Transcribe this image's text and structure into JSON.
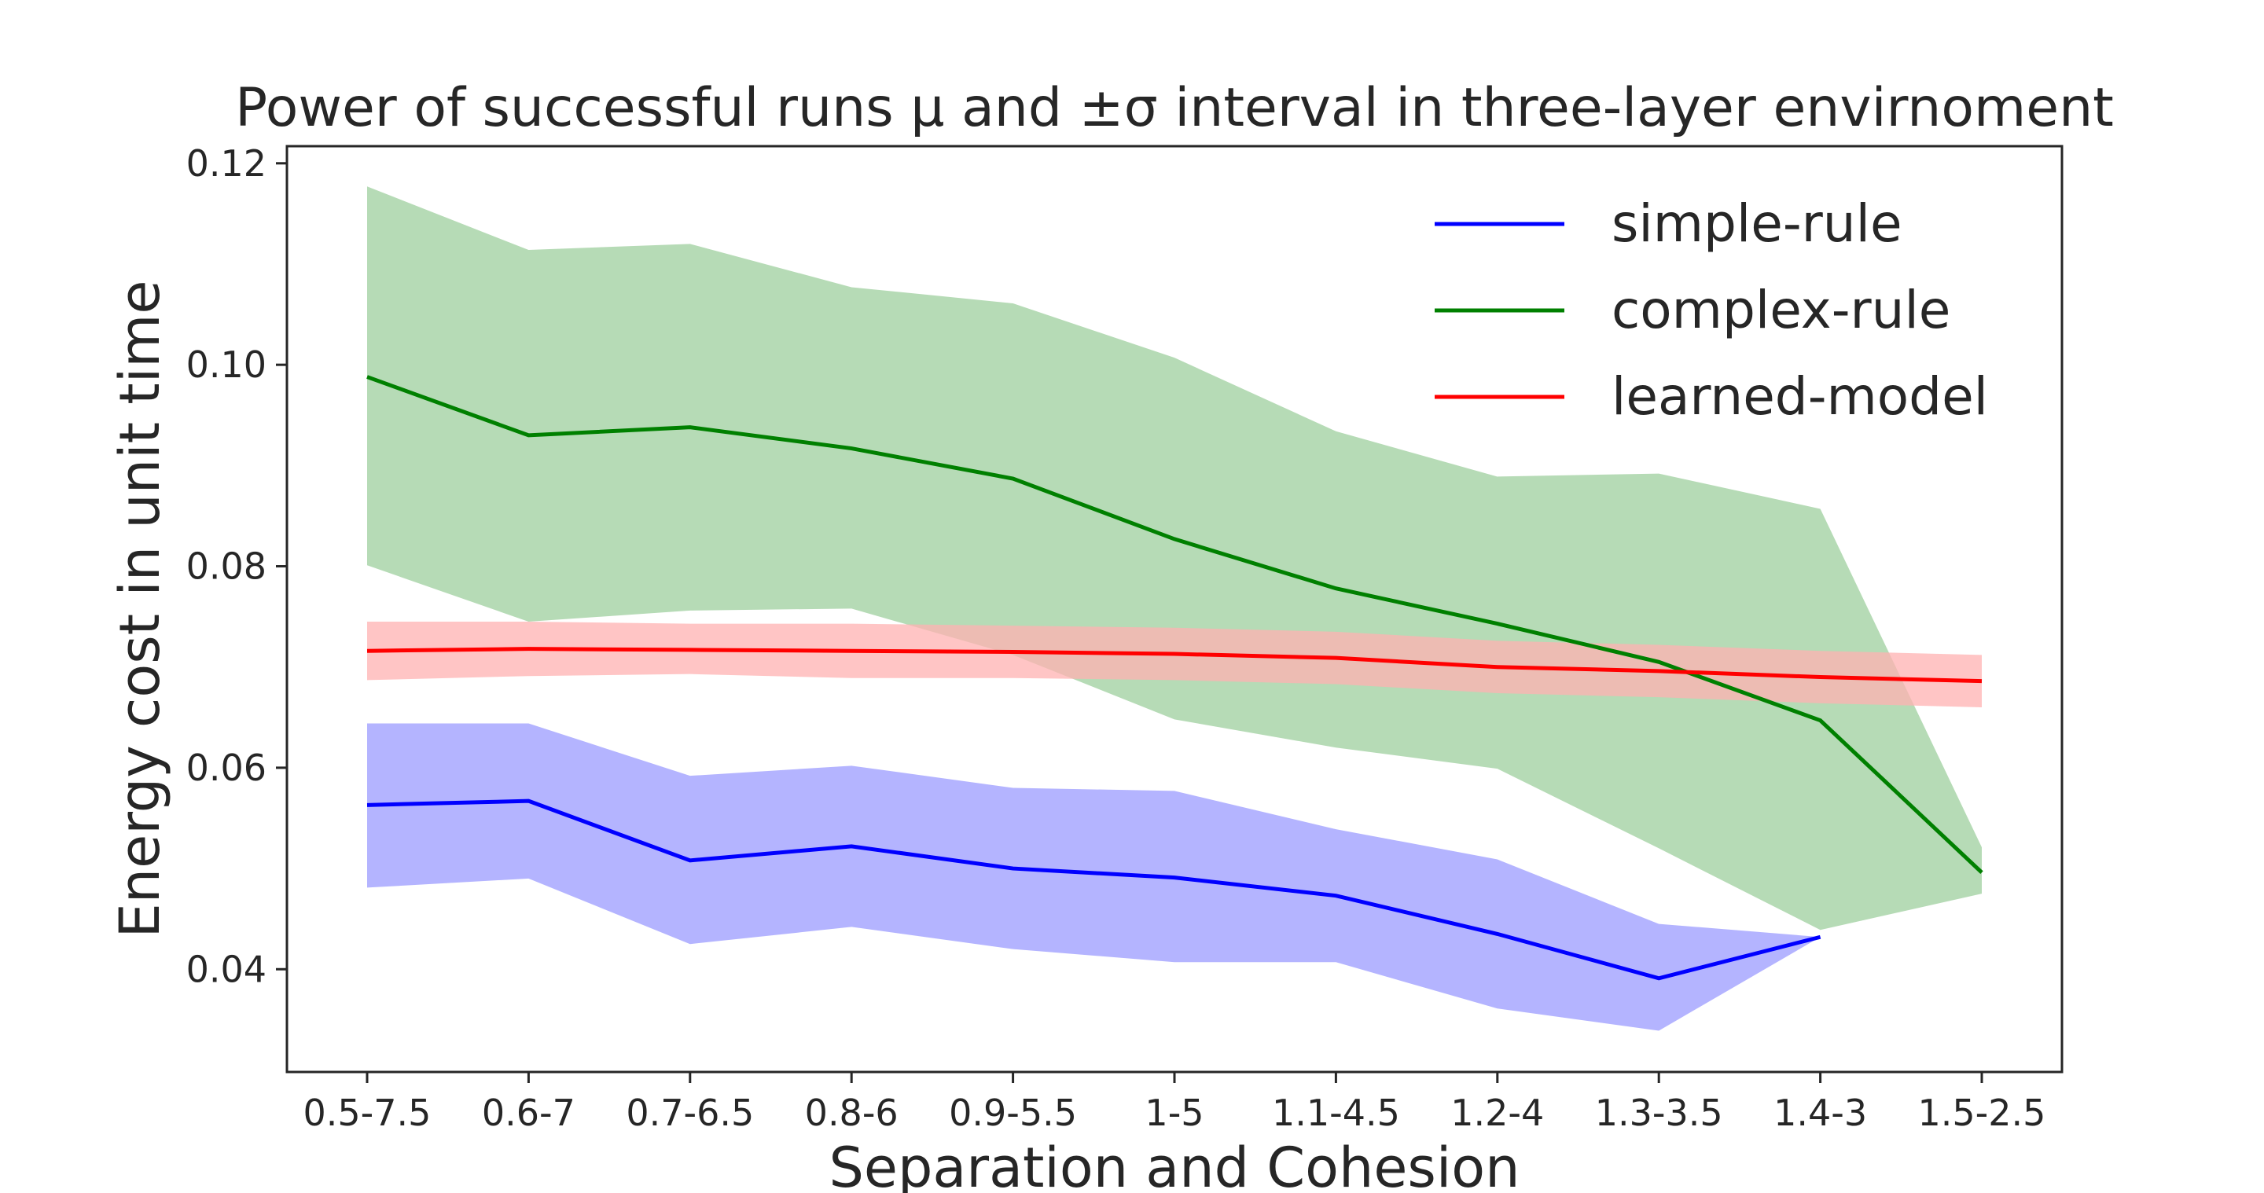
{
  "chart_data": {
    "type": "line",
    "title": "Power of successful runs μ and ±σ interval in three-layer envirnoment",
    "xlabel": "Separation and Cohesion",
    "ylabel": "Energy cost in unit time",
    "categories": [
      "0.5-7.5",
      "0.6-7",
      "0.7-6.5",
      "0.8-6",
      "0.9-5.5",
      "1-5",
      "1.1-4.5",
      "1.2-4",
      "1.3-3.5",
      "1.4-3",
      "1.5-2.5"
    ],
    "ylim": [
      0.0298,
      0.1217
    ],
    "yticks": [
      0.04,
      0.06,
      0.08,
      0.1,
      0.12
    ],
    "ytick_labels": [
      "0.04",
      "0.06",
      "0.08",
      "0.10",
      "0.12"
    ],
    "grid": false,
    "legend_position": "top-right",
    "series": [
      {
        "name": "simple-rule",
        "color": "#0000ff",
        "band_color": "#b0b0ff",
        "mean": [
          0.0563,
          0.0567,
          0.0508,
          0.0522,
          0.05,
          0.0491,
          0.0473,
          0.0435,
          0.0391,
          0.0432,
          null
        ],
        "upper": [
          0.0644,
          0.0644,
          0.0592,
          0.0602,
          0.058,
          0.0577,
          0.0539,
          0.0509,
          0.0445,
          0.0432,
          null
        ],
        "lower": [
          0.0481,
          0.049,
          0.0425,
          0.0442,
          0.042,
          0.0407,
          0.0407,
          0.0361,
          0.0339,
          0.0432,
          null
        ]
      },
      {
        "name": "complex-rule",
        "color": "#008000",
        "band_color": "#b2d9b2",
        "mean": [
          0.0988,
          0.093,
          0.0938,
          0.0917,
          0.0887,
          0.0827,
          0.0778,
          0.0743,
          0.0705,
          0.0647,
          0.0496
        ],
        "upper": [
          0.1177,
          0.1114,
          0.112,
          0.1077,
          0.1061,
          0.1007,
          0.0934,
          0.0889,
          0.0892,
          0.0857,
          0.0521
        ],
        "lower": [
          0.0801,
          0.0745,
          0.0756,
          0.0758,
          0.0712,
          0.0648,
          0.062,
          0.0599,
          0.052,
          0.0439,
          0.0475
        ]
      },
      {
        "name": "learned-model",
        "color": "#ff0000",
        "band_color": "#ffb2b2",
        "mean": [
          0.0716,
          0.0718,
          0.0717,
          0.0716,
          0.0715,
          0.0713,
          0.0709,
          0.07,
          0.0696,
          0.069,
          0.0686
        ],
        "upper": [
          0.0745,
          0.0745,
          0.0743,
          0.0743,
          0.0741,
          0.0739,
          0.0735,
          0.0726,
          0.0722,
          0.0716,
          0.0712
        ],
        "lower": [
          0.0687,
          0.0691,
          0.0693,
          0.0689,
          0.0689,
          0.0687,
          0.0683,
          0.0674,
          0.067,
          0.0664,
          0.066
        ]
      }
    ]
  }
}
